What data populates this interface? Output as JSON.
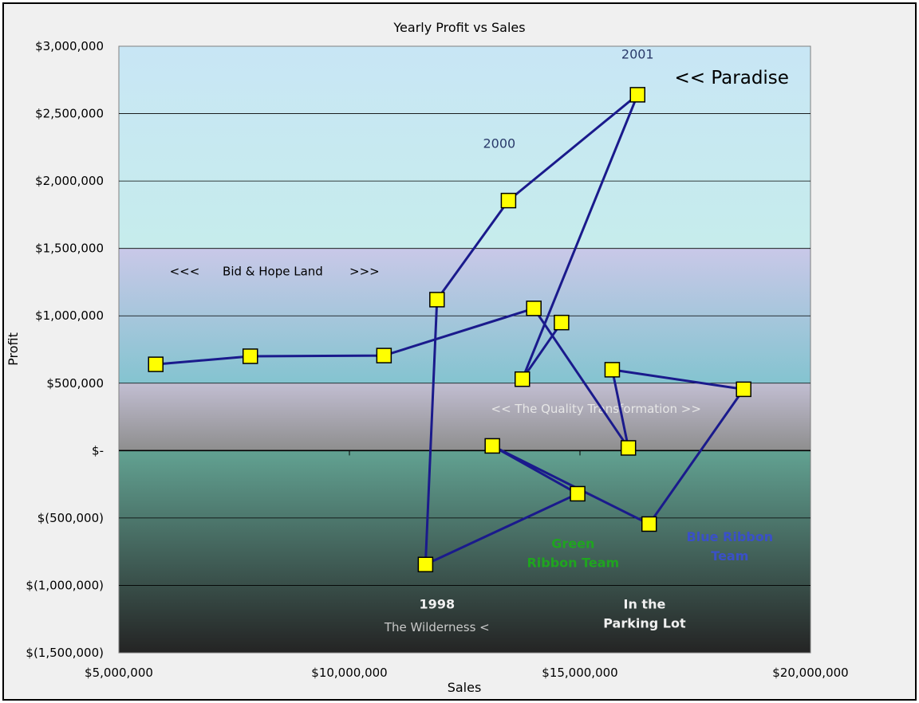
{
  "chart_data": {
    "type": "scatter",
    "title": "Yearly Profit vs Sales",
    "xlabel": "Sales",
    "ylabel": "Profit",
    "xlim": [
      5000000,
      20000000
    ],
    "ylim": [
      -1500000,
      3000000
    ],
    "x_ticks": [
      5000000,
      10000000,
      15000000,
      20000000
    ],
    "x_tick_labels": [
      "$5,000,000",
      "$10,000,000",
      "$15,000,000",
      "$20,000,000"
    ],
    "y_ticks": [
      3000000,
      2500000,
      2000000,
      1500000,
      1000000,
      500000,
      0,
      -500000,
      -1000000,
      -1500000
    ],
    "y_tick_labels": [
      "$3,000,000",
      "$2,500,000",
      "$2,000,000",
      "$1,500,000",
      "$1,000,000",
      "$500,000",
      "$-",
      "$(500,000)",
      "$(1,000,000)",
      "$(1,500,000)"
    ],
    "grid": "horizontal",
    "line_color": "#1a1a8c",
    "marker_color": "#ffff00",
    "bands": [
      {
        "from": 1500000,
        "to": 3000000,
        "color_top": "#c8e6f5",
        "color_bottom": "#c6ecec"
      },
      {
        "from": 500000,
        "to": 1500000,
        "color_top": "#c9c8e8",
        "color_bottom": "#84c4d0"
      },
      {
        "from": 0,
        "to": 500000,
        "color_top": "#c2bed2",
        "color_bottom": "#8e8e8e"
      },
      {
        "from": -1500000,
        "to": 0,
        "color_top": "#62a292",
        "color_bottom": "#242424"
      }
    ],
    "series": [
      {
        "points": [
          [
            5800000,
            640000
          ],
          [
            7850000,
            700000
          ],
          [
            10750000,
            705000
          ],
          [
            14000000,
            1055000
          ],
          [
            16050000,
            20000
          ],
          [
            15700000,
            600000
          ],
          [
            18550000,
            455000
          ],
          [
            16500000,
            -545000
          ],
          [
            13100000,
            35000
          ],
          [
            14950000,
            -320000
          ],
          [
            11650000,
            -845000
          ],
          [
            11900000,
            1120000
          ],
          [
            13450000,
            1855000
          ],
          [
            16250000,
            2640000
          ],
          [
            13750000,
            530000
          ],
          [
            14600000,
            950000
          ]
        ]
      }
    ],
    "annotations": [
      {
        "text": "2001",
        "x": 16250000,
        "y": 2940000,
        "color": "#2a3a6a",
        "size": 16,
        "weight": "normal",
        "anchor": "middle"
      },
      {
        "text": "<< Paradise",
        "x": 17050000,
        "y": 2770000,
        "color": "#000000",
        "size": 23,
        "weight": "normal",
        "anchor": "start"
      },
      {
        "text": "2000",
        "x": 13250000,
        "y": 2280000,
        "color": "#2a3a6a",
        "size": 16,
        "weight": "normal",
        "anchor": "middle"
      },
      {
        "text": "<<<",
        "x": 6100000,
        "y": 1330000,
        "color": "#000000",
        "size": 15,
        "weight": "normal",
        "anchor": "start"
      },
      {
        "text": "Bid & Hope Land",
        "x": 7250000,
        "y": 1330000,
        "color": "#000000",
        "size": 15,
        "weight": "normal",
        "anchor": "start"
      },
      {
        "text": ">>>",
        "x": 10000000,
        "y": 1330000,
        "color": "#000000",
        "size": 15,
        "weight": "normal",
        "anchor": "start"
      },
      {
        "text": "<< The Quality Transformation >>",
        "x": 15350000,
        "y": 310000,
        "color": "#e6e6e6",
        "size": 15,
        "weight": "normal",
        "anchor": "middle"
      },
      {
        "text": "Green",
        "x": 14850000,
        "y": -690000,
        "color": "#1fa51f",
        "size": 16,
        "weight": "bold",
        "anchor": "middle"
      },
      {
        "text": "Ribbon Team",
        "x": 14850000,
        "y": -830000,
        "color": "#1fa51f",
        "size": 16,
        "weight": "bold",
        "anchor": "middle"
      },
      {
        "text": "Blue Ribbon",
        "x": 18250000,
        "y": -640000,
        "color": "#3a50c8",
        "size": 16,
        "weight": "bold",
        "anchor": "middle"
      },
      {
        "text": "Team",
        "x": 18250000,
        "y": -780000,
        "color": "#3a50c8",
        "size": 16,
        "weight": "bold",
        "anchor": "middle"
      },
      {
        "text": "1998",
        "x": 11900000,
        "y": -1140000,
        "color": "#f0f0f0",
        "size": 16,
        "weight": "bold",
        "anchor": "middle"
      },
      {
        "text": "The Wilderness <",
        "x": 11900000,
        "y": -1310000,
        "color": "#c8c8c8",
        "size": 15,
        "weight": "normal",
        "anchor": "middle"
      },
      {
        "text": "In the",
        "x": 16400000,
        "y": -1140000,
        "color": "#f0f0f0",
        "size": 16,
        "weight": "bold",
        "anchor": "middle"
      },
      {
        "text": "Parking Lot",
        "x": 16400000,
        "y": -1280000,
        "color": "#f0f0f0",
        "size": 16,
        "weight": "bold",
        "anchor": "middle"
      }
    ]
  }
}
